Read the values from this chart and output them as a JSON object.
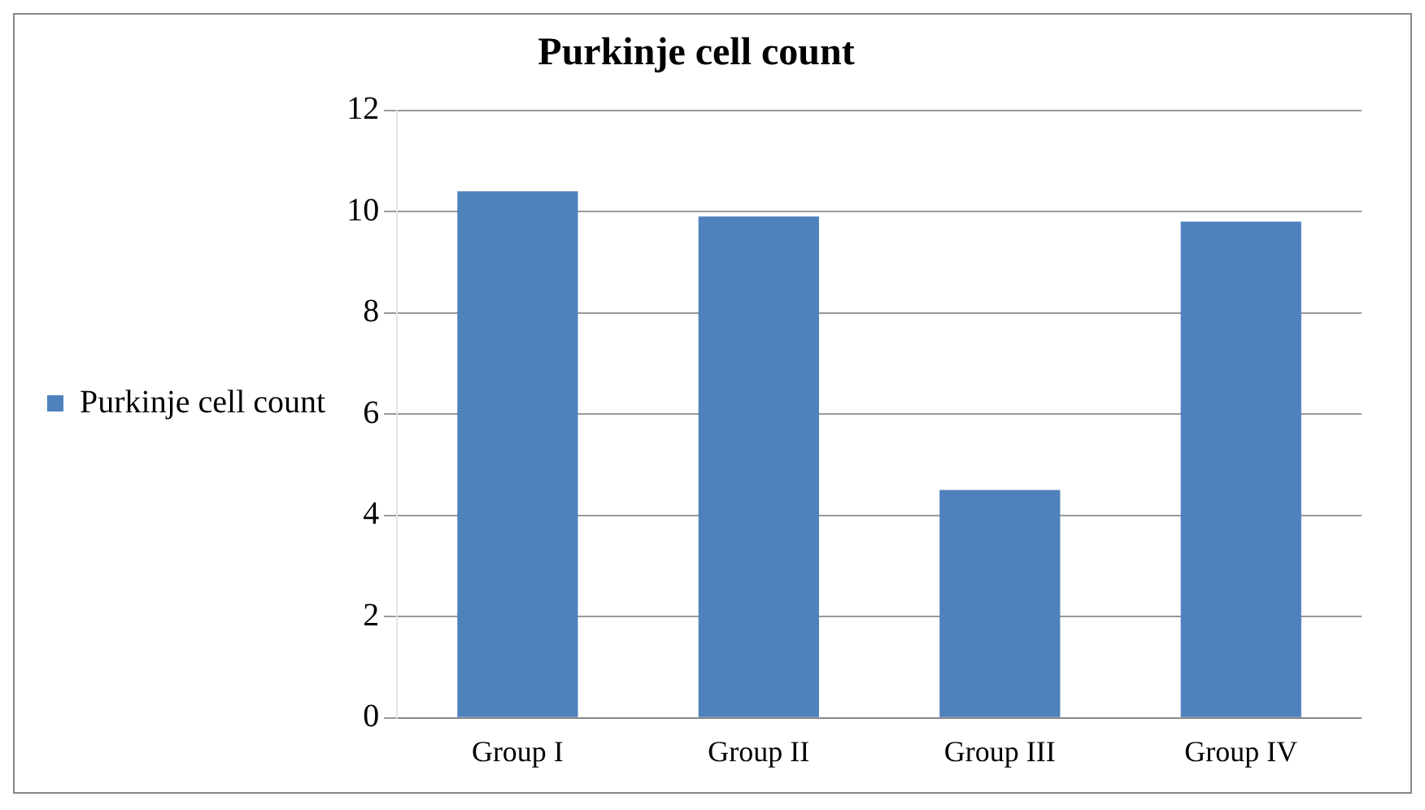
{
  "chart_data": {
    "type": "bar",
    "title": "Purkinje cell count",
    "categories": [
      "Group I",
      "Group II",
      "Group III",
      "Group IV"
    ],
    "series": [
      {
        "name": "Purkinje cell count",
        "color": "#4f81bd",
        "values": [
          10.4,
          9.9,
          4.5,
          9.8
        ]
      }
    ],
    "ylim": [
      0,
      12
    ],
    "yticks": [
      0,
      2,
      4,
      6,
      8,
      10,
      12
    ],
    "grid": "y",
    "legend": "left"
  }
}
